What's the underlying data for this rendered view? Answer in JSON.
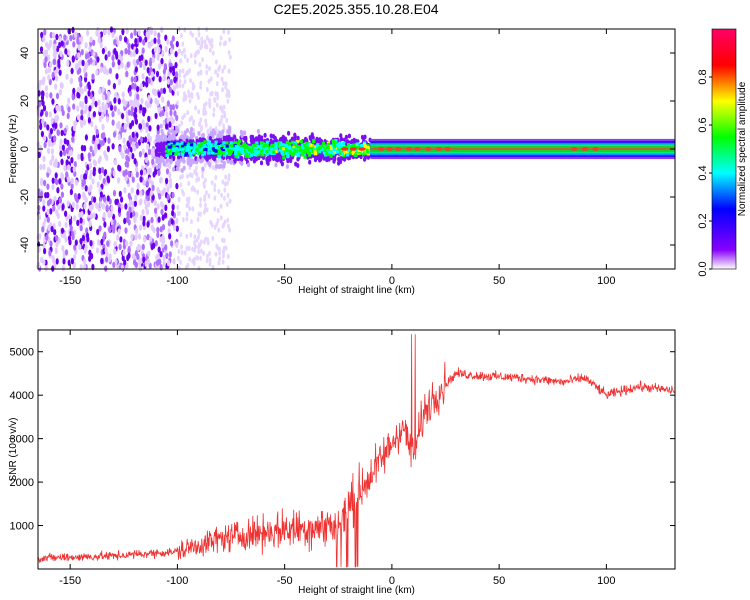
{
  "title": "C2E5.2025.355.10.28.E04",
  "chart_data": [
    {
      "type": "heatmap",
      "xlabel": "Height of straight line (km)",
      "ylabel": "Frequency (Hz)",
      "xlim": [
        -165,
        132
      ],
      "ylim": [
        -50,
        50
      ],
      "xticks": [
        -150,
        -100,
        -50,
        0,
        50,
        100
      ],
      "yticks": [
        -40,
        -20,
        0,
        20,
        40
      ],
      "colorbar": {
        "label": "Normalized spectral amplitude",
        "range": [
          0.0,
          1.0
        ],
        "ticks": [
          0.0,
          0.2,
          0.4,
          0.6,
          0.8
        ],
        "colors": [
          "#ffffff",
          "#8800ff",
          "#0000ff",
          "#00ffff",
          "#00ff00",
          "#ffff00",
          "#ff0000",
          "#ff0066"
        ]
      },
      "band_center_hz": 0,
      "regions": [
        {
          "x_range": [
            -165,
            -100
          ],
          "description": "broadband noise",
          "amplitude": 0.15
        },
        {
          "x_range": [
            -100,
            -10
          ],
          "description": "emerging band",
          "amplitude": 0.35
        },
        {
          "x_range": [
            -10,
            132
          ],
          "description": "strong band",
          "amplitude": 0.75
        }
      ]
    },
    {
      "type": "line",
      "xlabel": "Height of straight line (km)",
      "ylabel": "SNR (10 * v/v)",
      "xlim": [
        -165,
        132
      ],
      "ylim": [
        0,
        5500
      ],
      "xticks": [
        -150,
        -100,
        -50,
        0,
        50,
        100
      ],
      "yticks": [
        1000,
        2000,
        3000,
        4000,
        5000
      ],
      "color": "#ee3333",
      "trend": {
        "x": [
          -165,
          -130,
          -100,
          -80,
          -60,
          -40,
          -25,
          -15,
          -5,
          5,
          10,
          15,
          20,
          30,
          40,
          60,
          80,
          90,
          100,
          115,
          132
        ],
        "y": [
          250,
          300,
          400,
          700,
          850,
          950,
          1000,
          1800,
          2500,
          3300,
          2600,
          3600,
          4000,
          4500,
          4450,
          4400,
          4300,
          4400,
          4000,
          4200,
          4100
        ]
      }
    }
  ]
}
